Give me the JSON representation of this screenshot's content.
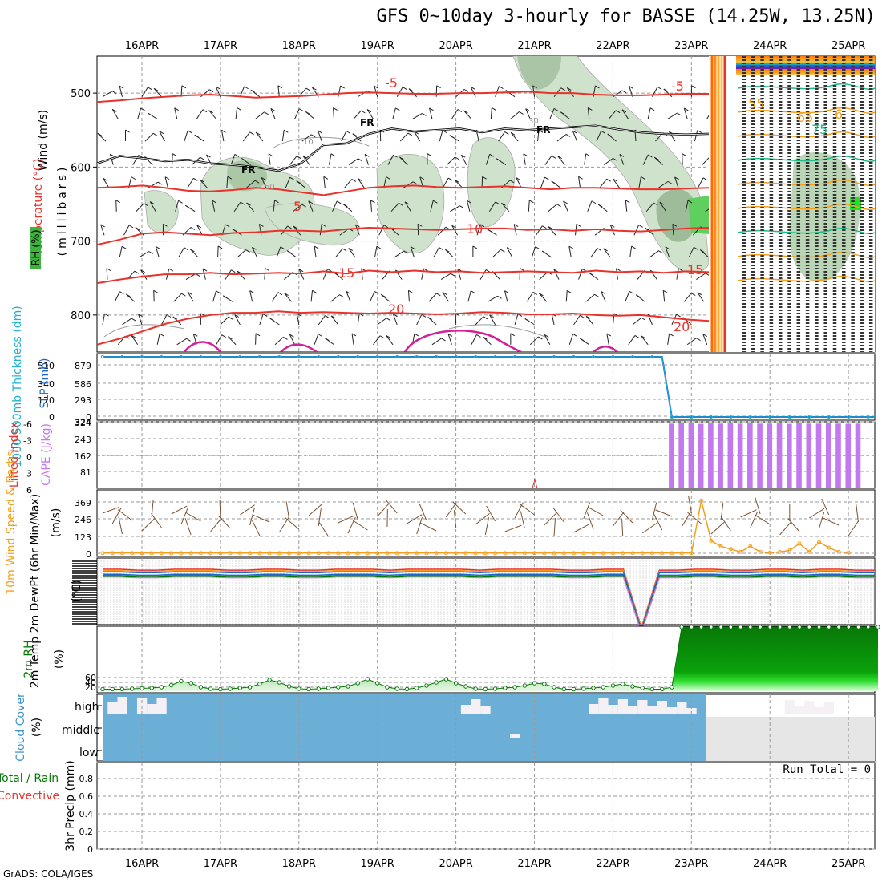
{
  "title": "GFS 0~10day 3-hourly for BASSE (14.25W, 13.25N)",
  "credit": "GrADS: COLA/IGES",
  "dates": [
    "16APR",
    "17APR",
    "18APR",
    "19APR",
    "20APR",
    "21APR",
    "22APR",
    "23APR",
    "24APR",
    "25APR"
  ],
  "colors": {
    "temp": "#e8322c",
    "fr": "#000000",
    "rh": "#cfe3cc",
    "blue": "#1e66c8",
    "cyan": "#20b0d0",
    "cape": "#c278ee",
    "green": "#087808",
    "cloud": "#6baed6",
    "orange": "#f4a021",
    "brown": "#7a5230"
  },
  "chart_data": [
    {
      "type": "contour",
      "panel": "upper-air",
      "labels": {
        "wind": "Wind (m/s)",
        "temp": "Temperature (°C)",
        "rh": "RH (%)",
        "pres": "(millibars)"
      },
      "yticks": [
        500,
        600,
        700,
        800
      ],
      "ylim": [
        450,
        850
      ],
      "isotherms": [
        {
          "label": "-5",
          "y": [
            512,
            510,
            507,
            505,
            503,
            502,
            504,
            506,
            505,
            504,
            502,
            500,
            499,
            500,
            501,
            501,
            500,
            500,
            499,
            498,
            500,
            500,
            502,
            503,
            503,
            502,
            501,
            501
          ]
        },
        {
          "label": "5",
          "y": [
            628,
            627,
            625,
            628,
            632,
            633,
            631,
            628,
            630,
            634,
            638,
            633,
            628,
            626,
            625,
            627,
            628,
            627,
            626,
            628,
            630,
            628,
            628,
            629,
            630,
            630,
            629,
            628
          ]
        },
        {
          "label": "10",
          "y": [
            705,
            698,
            690,
            688,
            690,
            692,
            689,
            688,
            686,
            686,
            687,
            684,
            682,
            683,
            684,
            685,
            684,
            683,
            683,
            685,
            684,
            686,
            684,
            686,
            687,
            685,
            683,
            682
          ]
        },
        {
          "label": "15",
          "y": [
            757,
            752,
            748,
            745,
            745,
            743,
            745,
            744,
            743,
            744,
            741,
            744,
            740,
            742,
            740,
            742,
            741,
            743,
            742,
            741,
            742,
            743,
            740,
            742,
            741,
            743,
            741,
            742
          ]
        },
        {
          "label": "20",
          "y": [
            840,
            832,
            822,
            812,
            805,
            800,
            797,
            797,
            795,
            797,
            796,
            797,
            798,
            797,
            798,
            799,
            798,
            796,
            797,
            799,
            799,
            798,
            800,
            801,
            800,
            803,
            806,
            808
          ]
        }
      ],
      "freezing_level": {
        "label": "FR",
        "y": [
          595,
          585,
          588,
          592,
          590,
          595,
          597,
          600,
          605,
          595,
          570,
          568,
          555,
          548,
          552,
          550,
          548,
          553,
          548,
          550,
          548,
          546,
          544,
          549,
          553,
          555,
          556,
          555
        ]
      },
      "iso_labels": {
        "fr": "FR",
        "m5": "-5",
        "p5": "5",
        "p10": "10",
        "p15": "15",
        "p20": "20",
        "rh50": "50",
        "rh30": "30",
        "rh10": "10",
        "o55": "55",
        "o65": "65",
        "o6": "6",
        "o75": "75"
      }
    },
    {
      "type": "line",
      "panel": "thickness-slp",
      "labels": {
        "thickness": "1000-500mb Thickness (dm)",
        "slp": "SLP (mb)"
      },
      "left_ticks": [
        "510",
        "340",
        "170",
        "0"
      ],
      "right_ticks": [
        "879",
        "586",
        "293",
        "0"
      ],
      "last_right_tick": "324",
      "y_value": [
        1042,
        1042,
        1042,
        1042,
        1042,
        1042,
        1042,
        1042,
        1042,
        1042,
        1042,
        1042,
        1042,
        1042,
        1042,
        1042,
        1042,
        1042,
        1042,
        1042,
        1042,
        1042,
        1042,
        1042,
        1042,
        1042,
        1042,
        1042,
        1042,
        1042,
        1042,
        1042,
        1042,
        1042,
        1042,
        1042,
        1042,
        1042,
        1042,
        1042,
        1042,
        1042,
        1042,
        1042,
        1042,
        1042,
        1042,
        1042,
        1042,
        1042,
        1042,
        1042,
        1042,
        1042,
        1042,
        1042,
        1042,
        1042,
        0,
        0,
        0,
        0,
        0,
        0,
        0,
        0,
        0,
        0,
        0,
        0,
        0,
        0,
        0,
        0,
        0,
        0,
        0,
        0,
        0,
        0,
        0
      ]
    },
    {
      "type": "bar",
      "panel": "cape-li",
      "labels": {
        "li": "Lifted Index",
        "cape": "CAPE (J/kg)"
      },
      "li_ticks": [
        "-6",
        "-3",
        "0",
        "3",
        "6"
      ],
      "cape_ticks": [
        "324",
        "243",
        "162",
        "81"
      ],
      "cape": [
        0,
        0,
        0,
        0,
        0,
        0,
        0,
        0,
        0,
        0,
        0,
        0,
        0,
        0,
        0,
        0,
        0,
        0,
        0,
        0,
        0,
        0,
        0,
        0,
        0,
        0,
        0,
        0,
        0,
        0,
        0,
        0,
        0,
        0,
        0,
        0,
        0,
        0,
        0,
        0,
        0,
        0,
        0,
        0,
        0,
        0,
        0,
        0,
        0,
        0,
        0,
        0,
        0,
        0,
        0,
        0,
        0,
        0,
        315,
        320,
        316,
        314,
        316,
        315,
        316,
        315,
        316,
        315,
        315,
        316,
        314,
        316,
        315,
        315,
        316,
        315,
        314,
        315
      ]
    },
    {
      "type": "line",
      "panel": "wind10m",
      "labels": {
        "main": "10m Wind Speed & Barbs",
        "units": "(m/s)"
      },
      "yticks": [
        "369",
        "246",
        "123",
        "0"
      ],
      "speed": [
        1,
        1,
        1,
        1,
        1,
        1,
        1,
        1,
        1,
        1,
        1,
        1,
        1,
        1,
        1,
        1,
        1,
        1,
        1,
        1,
        1,
        1,
        1,
        1,
        1,
        1,
        1,
        1,
        1,
        1,
        1,
        1,
        1,
        1,
        1,
        1,
        1,
        1,
        1,
        1,
        1,
        1,
        1,
        1,
        1,
        1,
        1,
        1,
        1,
        1,
        1,
        1,
        1,
        1,
        1,
        1,
        1,
        1,
        1,
        1,
        1,
        380,
        90,
        50,
        30,
        10,
        50,
        10,
        5,
        10,
        20,
        70,
        10,
        80,
        40,
        10,
        5
      ]
    },
    {
      "type": "line",
      "panel": "temp2m",
      "labels": {
        "main": "2m Temp 2m DewPt (6hr Min/Max)",
        "units": "(°C)"
      },
      "series": [
        {
          "name": "Temp",
          "values": [
            36,
            36,
            35,
            35,
            36,
            36,
            36,
            35,
            35,
            36,
            36,
            35,
            35,
            36,
            36,
            36,
            35,
            36,
            36,
            36,
            36,
            35,
            36,
            36,
            36,
            36,
            35,
            35,
            36,
            36,
            -30,
            35,
            35,
            36,
            36,
            35,
            35,
            36,
            36,
            35,
            36,
            36,
            35,
            35
          ]
        },
        {
          "name": "DewPt",
          "values": [
            33,
            33,
            32,
            32,
            33,
            33,
            33,
            32,
            32,
            33,
            33,
            32,
            32,
            33,
            33,
            33,
            32,
            33,
            33,
            33,
            33,
            32,
            33,
            33,
            33,
            33,
            32,
            32,
            33,
            33,
            -30,
            32,
            32,
            33,
            33,
            32,
            32,
            33,
            33,
            32,
            33,
            33,
            32,
            32
          ]
        }
      ]
    },
    {
      "type": "area",
      "panel": "rh2m",
      "labels": {
        "main": "2m RH",
        "units": "(%)"
      },
      "yticks": [
        "60",
        "40",
        "20"
      ],
      "values": [
        5,
        5,
        5,
        6,
        7,
        8,
        10,
        15,
        25,
        20,
        10,
        6,
        5,
        6,
        8,
        10,
        18,
        28,
        22,
        12,
        6,
        5,
        6,
        8,
        10,
        12,
        20,
        30,
        20,
        10,
        6,
        5,
        8,
        14,
        22,
        30,
        20,
        12,
        6,
        5,
        6,
        8,
        10,
        14,
        20,
        18,
        10,
        5,
        5,
        6,
        8,
        10,
        14,
        18,
        12,
        8,
        5,
        5,
        10,
        160,
        160,
        160,
        160,
        160,
        160,
        160,
        160,
        160,
        160,
        160,
        160,
        160,
        160,
        160,
        160,
        160,
        160,
        160,
        160,
        160
      ]
    },
    {
      "type": "heatmap",
      "panel": "cloud",
      "labels": {
        "main": "Cloud Cover",
        "units": "(%)",
        "high": "high",
        "middle": "middle",
        "low": "low"
      },
      "gaps": [
        {
          "level": "high",
          "times": [
            1,
            2,
            4,
            5,
            6,
            37,
            38,
            39,
            50,
            51,
            52,
            53,
            54,
            55,
            56,
            57,
            58,
            59,
            60,
            70,
            71,
            72,
            73,
            74
          ]
        },
        {
          "level": "middle",
          "times": [
            42
          ]
        }
      ]
    },
    {
      "type": "bar",
      "panel": "precip",
      "labels": {
        "main": "3hr Precip (mm)",
        "total": "Total / Rain",
        "conv": "Convective"
      },
      "yticks": [
        "0.8",
        "0.6",
        "0.4",
        "0.2",
        "0"
      ],
      "run_total": "Run Total = 0",
      "values": []
    }
  ]
}
